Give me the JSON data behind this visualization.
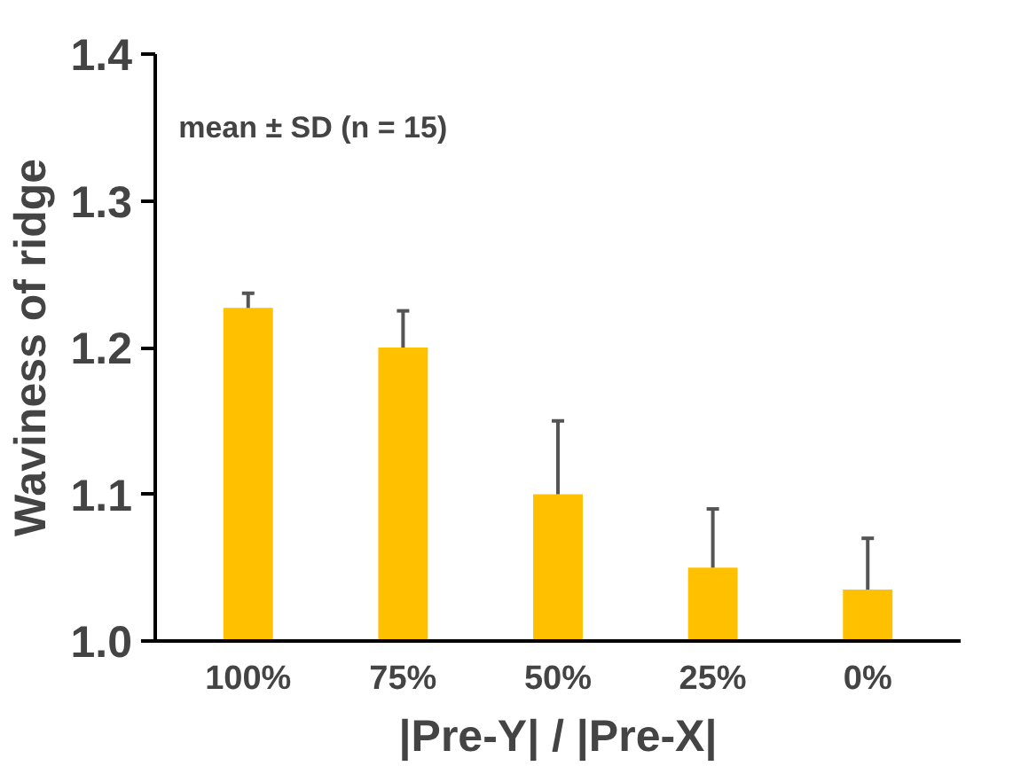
{
  "chart_data": {
    "type": "bar",
    "xlabel": "|Pre-Y| / |Pre-X|",
    "ylabel": "Waviness of ridge",
    "categories": [
      "100%",
      "75%",
      "50%",
      "25%",
      "0%"
    ],
    "values": [
      1.227,
      1.2,
      1.1,
      1.05,
      1.035
    ],
    "errors": [
      [
        1.227,
        1.237
      ],
      [
        1.2,
        1.225
      ],
      [
        1.1,
        1.15
      ],
      [
        1.05,
        1.09
      ],
      [
        1.035,
        1.07
      ]
    ],
    "color": "#ffc000",
    "ylim": [
      1.0,
      1.4
    ],
    "yticks": [
      {
        "value": 1.0,
        "label": "1.0"
      },
      {
        "value": 1.1,
        "label": "1.1"
      },
      {
        "value": 1.2,
        "label": "1.2"
      },
      {
        "value": 1.3,
        "label": "1.3"
      },
      {
        "value": 1.4,
        "label": "1.4"
      }
    ],
    "annotations": [
      "mean ± SD  (n = 15)"
    ],
    "grid": false
  }
}
